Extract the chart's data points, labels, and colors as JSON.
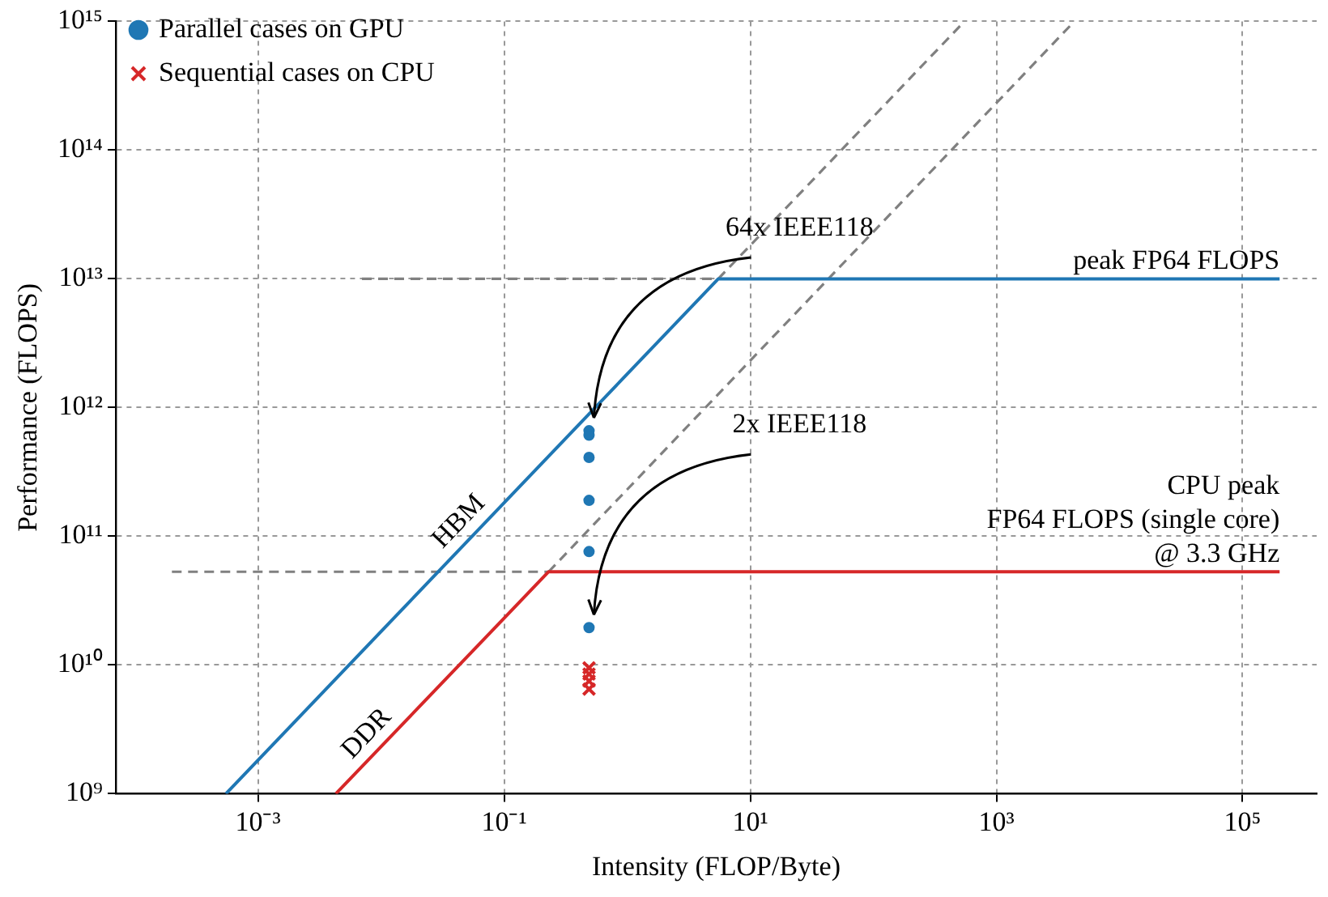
{
  "chart_data": {
    "type": "scatter",
    "xlabel": "Intensity (FLOP/Byte)",
    "ylabel": "Performance (FLOPS)",
    "log": "xy",
    "grid": true,
    "legend": "top left",
    "xlim": [
      7e-05,
      400000.0
    ],
    "ylim": [
      1000000000.0,
      1000000000000000.0
    ],
    "xticks": [
      {
        "value": 0.001,
        "label": "10⁻³"
      },
      {
        "value": 0.1,
        "label": "10⁻¹"
      },
      {
        "value": 10,
        "label": "10¹"
      },
      {
        "value": 1000,
        "label": "10³"
      },
      {
        "value": 100000,
        "label": "10⁵"
      }
    ],
    "yticks": [
      {
        "value": 1000000000.0,
        "label": "10⁹"
      },
      {
        "value": 10000000000.0,
        "label": "10¹⁰"
      },
      {
        "value": 100000000000.0,
        "label": "10¹¹"
      },
      {
        "value": 1000000000000.0,
        "label": "10¹²"
      },
      {
        "value": 10000000000000.0,
        "label": "10¹³"
      },
      {
        "value": 100000000000000.0,
        "label": "10¹⁴"
      },
      {
        "value": 1000000000000000.0,
        "label": "10¹⁵"
      }
    ],
    "series": [
      {
        "name": "Parallel cases on GPU",
        "type": "scatter",
        "marker": "circle",
        "color": "#1f77b4",
        "x": [
          0.49,
          0.49,
          0.49,
          0.49,
          0.49,
          0.49
        ],
        "values": [
          660000000000.0,
          610000000000.0,
          410000000000.0,
          190000000000.0,
          76000000000.0,
          19500000000.0
        ]
      },
      {
        "name": "Sequential cases on CPU",
        "type": "scatter",
        "marker": "cross",
        "color": "#d62728",
        "x": [
          0.49,
          0.49,
          0.49,
          0.49
        ],
        "values": [
          9500000000.0,
          8500000000.0,
          7500000000.0,
          6500000000.0
        ]
      },
      {
        "type": "line",
        "color": "#1f77b4",
        "line_style": "solid",
        "x": [
          0.00055,
          5.5,
          200000.0
        ],
        "values": [
          1000000000.0,
          10000000000000.0,
          10000000000000.0
        ]
      },
      {
        "type": "line",
        "color": "#d62728",
        "line_style": "solid",
        "x": [
          0.0043,
          0.23,
          200000.0
        ],
        "values": [
          1000000000.0,
          53000000000.0,
          53000000000.0
        ]
      },
      {
        "type": "line",
        "color": "#808080",
        "line_style": "dashed",
        "x": [
          0.007,
          5.5
        ],
        "values": [
          10000000000000.0,
          10000000000000.0
        ]
      },
      {
        "type": "line",
        "color": "#808080",
        "line_style": "dashed",
        "x": [
          0.0002,
          0.23
        ],
        "values": [
          53000000000.0,
          53000000000.0
        ]
      },
      {
        "type": "line",
        "color": "#808080",
        "line_style": "dashed",
        "x": [
          5.5,
          550
        ],
        "values": [
          10000000000000.0,
          1000000000000000.0
        ]
      },
      {
        "type": "line",
        "color": "#808080",
        "line_style": "dashed",
        "x": [
          0.23,
          4300
        ],
        "values": [
          53000000000.0,
          1000000000000000.0
        ]
      }
    ],
    "annotations": [
      {
        "text": "HBM",
        "x": 0.056,
        "y": 102000000000.0
      },
      {
        "text": "DDR",
        "x": 0.01,
        "y": 2300000000.0
      },
      {
        "text": "64x IEEE118",
        "x": 0.49,
        "y": 660000000000.0
      },
      {
        "text": "2x IEEE118",
        "x": 0.49,
        "y": 19500000000.0
      },
      {
        "text": "peak FP64 FLOPS",
        "x": 200000.0,
        "y": 10000000000000.0
      },
      {
        "text": "CPU peak\nFP64 FLOPS (single core)\n@ 3.3 GHz",
        "x": 200000.0,
        "y": 53000000000.0
      }
    ]
  }
}
